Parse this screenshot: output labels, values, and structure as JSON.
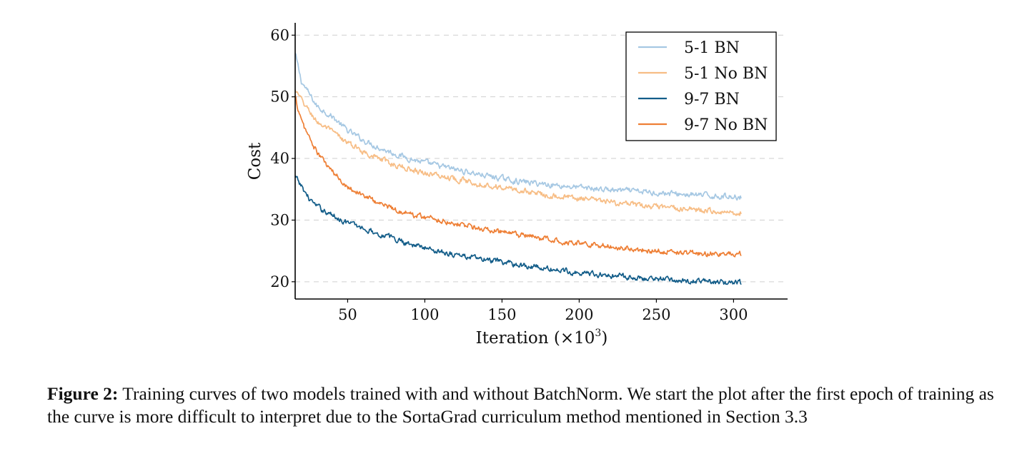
{
  "chart_data": {
    "type": "line",
    "title": "",
    "xlabel": "Iteration (×10",
    "xlabel_sup": "3",
    "xlabel_end": ")",
    "ylabel": "Cost",
    "xlim": [
      16,
      335
    ],
    "ylim": [
      17.2,
      62
    ],
    "x_ticks": [
      50,
      100,
      150,
      200,
      250,
      300
    ],
    "y_ticks": [
      20,
      30,
      40,
      50,
      60
    ],
    "grid": "horizontal dashed",
    "legend_position": "top-right",
    "series": [
      {
        "name": "5-1 BN",
        "color": "#a6c8e3",
        "x": [
          16,
          20,
          25,
          30,
          40,
          50,
          60,
          70,
          80,
          90,
          100,
          120,
          140,
          160,
          180,
          200,
          220,
          240,
          260,
          280,
          300,
          305
        ],
        "y": [
          57,
          52.5,
          50.5,
          48.5,
          46.8,
          44.5,
          43.0,
          41.8,
          40.8,
          40.0,
          39.3,
          38.2,
          37.2,
          36.3,
          35.8,
          35.3,
          34.9,
          34.6,
          34.3,
          34.0,
          33.8,
          33.8
        ]
      },
      {
        "name": "5-1 No BN",
        "color": "#f7bd85",
        "x": [
          16,
          20,
          25,
          30,
          40,
          50,
          60,
          70,
          80,
          90,
          100,
          120,
          140,
          160,
          180,
          200,
          220,
          240,
          260,
          280,
          300,
          305
        ],
        "y": [
          51,
          49.5,
          47.7,
          46.0,
          44.3,
          42.5,
          41.2,
          40.0,
          39.0,
          38.3,
          37.7,
          36.7,
          35.7,
          34.9,
          34.1,
          33.5,
          32.9,
          32.3,
          31.9,
          31.6,
          31.2,
          31.2
        ]
      },
      {
        "name": "9-7 BN",
        "color": "#135d89",
        "x": [
          16,
          20,
          25,
          30,
          40,
          50,
          60,
          70,
          80,
          90,
          100,
          120,
          140,
          160,
          180,
          200,
          220,
          240,
          260,
          280,
          300,
          305
        ],
        "y": [
          37,
          35.5,
          33.5,
          32.2,
          30.8,
          29.6,
          28.7,
          27.8,
          27.0,
          26.2,
          25.5,
          24.4,
          23.5,
          22.8,
          22.1,
          21.5,
          21.0,
          20.6,
          20.3,
          20.0,
          19.8,
          19.8
        ]
      },
      {
        "name": "9-7 No BN",
        "color": "#ee7f35",
        "x": [
          16,
          20,
          25,
          30,
          40,
          50,
          60,
          70,
          80,
          90,
          100,
          120,
          140,
          160,
          180,
          200,
          220,
          240,
          260,
          280,
          300,
          305
        ],
        "y": [
          50,
          46.0,
          43.5,
          41.0,
          37.8,
          35.5,
          34.0,
          32.8,
          31.8,
          31.0,
          30.5,
          29.5,
          28.4,
          27.6,
          26.9,
          26.3,
          25.7,
          25.2,
          24.9,
          24.6,
          24.4,
          24.4
        ]
      }
    ]
  },
  "caption": {
    "label": "Figure 2:",
    "text": " Training curves of two models trained with and without BatchNorm. We start the plot after the first epoch of training as the curve is more difficult to interpret due to the SortaGrad curriculum method mentioned in Section 3.3"
  }
}
